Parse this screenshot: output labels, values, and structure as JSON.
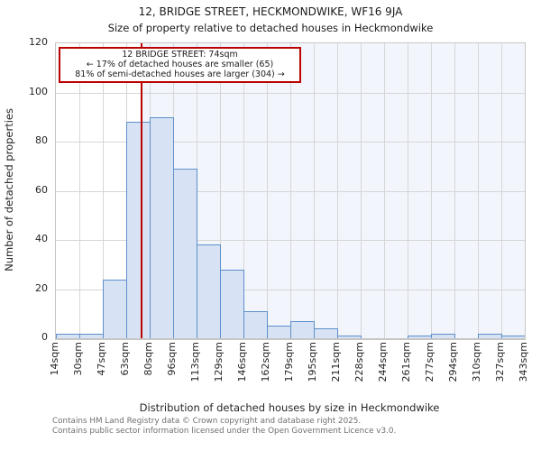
{
  "header": {
    "title": "12, BRIDGE STREET, HECKMONDWIKE, WF16 9JA",
    "subtitle": "Size of property relative to detached houses in Heckmondwike"
  },
  "annotation_box": {
    "lines": [
      "12 BRIDGE STREET: 74sqm",
      "← 17% of detached houses are smaller (65)",
      "81% of semi-detached houses are larger (304) →"
    ]
  },
  "chart_data": {
    "type": "bar",
    "title": "12, BRIDGE STREET, HECKMONDWIKE, WF16 9JA",
    "subtitle": "Size of property relative to detached houses in Heckmondwike",
    "xlabel": "Distribution of detached houses by size in Heckmondwike",
    "ylabel": "Number of detached properties",
    "categories": [
      "14sqm",
      "30sqm",
      "47sqm",
      "63sqm",
      "80sqm",
      "96sqm",
      "113sqm",
      "129sqm",
      "146sqm",
      "162sqm",
      "179sqm",
      "195sqm",
      "211sqm",
      "228sqm",
      "244sqm",
      "261sqm",
      "277sqm",
      "294sqm",
      "310sqm",
      "327sqm",
      "343sqm"
    ],
    "values": [
      2,
      2,
      24,
      88,
      90,
      69,
      38,
      28,
      11,
      5,
      7,
      4,
      1,
      0,
      0,
      1,
      2,
      0,
      2,
      1
    ],
    "yticks": [
      0,
      20,
      40,
      60,
      80,
      100,
      120
    ],
    "ylim": [
      0,
      120
    ],
    "xlim_sqm": [
      14,
      343
    ],
    "grid": true,
    "legend_position": "none",
    "marker": {
      "value_sqm": 74,
      "shaded_side": "right"
    }
  },
  "footer": {
    "lines": [
      "Contains HM Land Registry data © Crown copyright and database right 2025.",
      "Contains public sector information licensed under the Open Government Licence v3.0."
    ]
  },
  "colors": {
    "bar_fill": "#d7e3f4",
    "bar_edge": "#5e8fca",
    "marker_line": "#bb0000",
    "annotation_border": "#bb0000",
    "shade": "#f2f5fc",
    "grid": "#d6d6d6",
    "spine": "#c6c6c6",
    "text": "#1a1a1a",
    "footer_text": "#6f6f6f",
    "background": "#ffffff"
  }
}
